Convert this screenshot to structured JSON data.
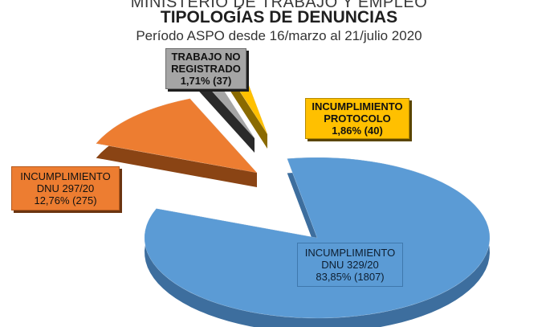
{
  "header": {
    "line1": "MINISTERIO DE TRABAJO Y EMPLEO",
    "line2": "TIPOLOGÍAS DE DENUNCIAS",
    "line3": "Período ASPO desde 16/marzo al 21/julio 2020"
  },
  "chart_data": {
    "type": "pie",
    "title": "TIPOLOGÍAS DE DENUNCIAS",
    "subtitle": "Período ASPO desde 16/marzo al 21/julio 2020",
    "slices": [
      {
        "label": "INCUMPLIMIENTO DNU 329/20",
        "label_lines": [
          "INCUMPLIMIENTO",
          "DNU 329/20"
        ],
        "percent_text": "83,85% (1807)",
        "percent": 83.85,
        "count": 1807,
        "color": "#5b9bd5",
        "side": "#3d6e9e"
      },
      {
        "label": "INCUMPLIMIENTO DNU 297/20",
        "label_lines": [
          "INCUMPLIMIENTO",
          "DNU 297/20"
        ],
        "percent_text": "12,76% (275)",
        "percent": 12.76,
        "count": 275,
        "color": "#ed7d31",
        "side": "#8a4414"
      },
      {
        "label": "TRABAJO NO REGISTRADO",
        "label_lines": [
          "TRABAJO NO",
          "REGISTRADO"
        ],
        "percent_text": "1,71% (37)",
        "percent": 1.71,
        "count": 37,
        "color": "#a5a5a5",
        "side": "#2a2a2a"
      },
      {
        "label": "INCUMPLIMIENTO PROTOCOLO",
        "label_lines": [
          "INCUMPLIMIENTO",
          "PROTOCOLO"
        ],
        "percent_text": "1,86% (40)",
        "percent": 1.86,
        "count": 40,
        "color": "#ffc000",
        "side": "#8a6a00"
      }
    ],
    "legend": "none",
    "style": "3d-exploded"
  }
}
